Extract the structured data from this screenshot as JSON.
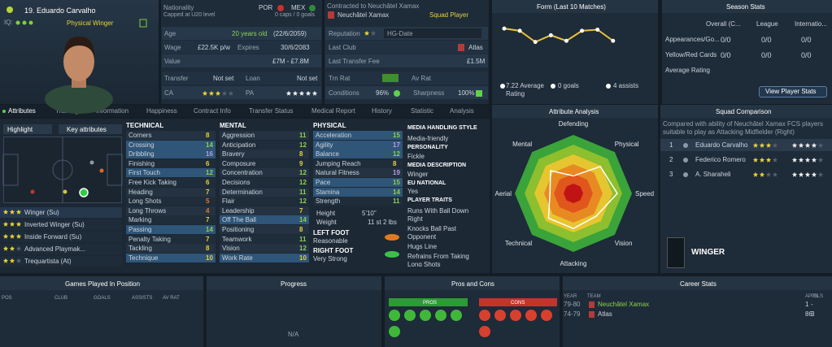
{
  "player": {
    "name": "19. Eduardo Carvalho",
    "iq_label": "IQ:",
    "role": "Physical Winger"
  },
  "info": {
    "nationality_label": "Nationality",
    "nations": [
      "POR",
      "MEX"
    ],
    "caps_note": "Capped at U20 level",
    "caps": "0 caps / 0 goals",
    "age_label": "Age",
    "age": "20 years old",
    "dob": "(22/6/2059)",
    "wage_label": "Wage",
    "wage": "£22.5K p/w",
    "expires_label": "Expires",
    "expires": "30/6/2083",
    "value_label": "Value",
    "value": "£7M - £7.8M",
    "transfer_label": "Transfer",
    "transfer": "Not set",
    "loan_label": "Loan",
    "loan": "Not set",
    "ca_label": "CA",
    "pa_label": "PA"
  },
  "contract": {
    "contracted": "Contracted to Neuchâtel Xamax",
    "club": "Neuchâtel Xamax",
    "status": "Squad Player",
    "reputation_label": "Reputation",
    "hg": "HG-Date",
    "last_club_label": "Last Club",
    "last_club": "Atlas",
    "fee_label": "Last Transfer Fee",
    "fee": "£1.5M",
    "trn_label": "Trn Rat",
    "av_label": "Av Rat",
    "conditions_label": "Conditions",
    "conditions": "96%",
    "sharpness_label": "Sharpness",
    "sharpness": "100%"
  },
  "form": {
    "title": "Form (Last 10 Matches)",
    "values": [
      7.9,
      7.7,
      6.7,
      7.3,
      6.8,
      7.7,
      7.8,
      6.8
    ],
    "ylim": [
      5,
      9
    ],
    "color": "#e8c33a",
    "average": "7.22 Average Rating",
    "goals": "0 goals",
    "assists": "4 assists"
  },
  "season": {
    "title": "Season Stats",
    "columns": [
      "Overall (C...",
      "League",
      "Internatio..."
    ],
    "rows": [
      [
        "Appearances/Go...",
        "0/0",
        "0/0",
        "0/0"
      ],
      [
        "Yellow/Red Cards",
        "0/0",
        "0/0",
        "0/0"
      ],
      [
        "Average Rating"
      ]
    ],
    "button": "View Player Stats"
  },
  "tabs": [
    "Attributes",
    "Training",
    "Information",
    "Happiness",
    "Contract Info",
    "Transfer Status",
    "Medical Report",
    "History",
    "Statistic",
    "Analysis"
  ],
  "attributes": {
    "highlight": "Highlight",
    "key": "Key attributes",
    "roles": [
      "Winger (Su)",
      "Inverted Winger (Su)",
      "Inside Forward (Su)",
      "Advanced Playmak...",
      "Trequartista (At)"
    ],
    "technical": {
      "title": "TECHNICAL",
      "items": [
        {
          "name": "Corners",
          "value": 8
        },
        {
          "name": "Crossing",
          "value": 14,
          "key": true
        },
        {
          "name": "Dribbling",
          "value": 16,
          "key": true
        },
        {
          "name": "Finishing",
          "value": 6
        },
        {
          "name": "First Touch",
          "value": 12,
          "key": true
        },
        {
          "name": "Free Kick Taking",
          "value": 6
        },
        {
          "name": "Heading",
          "value": 7
        },
        {
          "name": "Long Shots",
          "value": 5
        },
        {
          "name": "Long Throws",
          "value": 4
        },
        {
          "name": "Marking",
          "value": 7
        },
        {
          "name": "Passing",
          "value": 14,
          "key": true
        },
        {
          "name": "Penalty Taking",
          "value": 7
        },
        {
          "name": "Tackling",
          "value": 8
        },
        {
          "name": "Technique",
          "value": 10,
          "key": true
        }
      ]
    },
    "mental": {
      "title": "MENTAL",
      "items": [
        {
          "name": "Aggression",
          "value": 11
        },
        {
          "name": "Anticipation",
          "value": 12
        },
        {
          "name": "Bravery",
          "value": 8
        },
        {
          "name": "Composure",
          "value": 9
        },
        {
          "name": "Concentration",
          "value": 12
        },
        {
          "name": "Decisions",
          "value": 12
        },
        {
          "name": "Determination",
          "value": 11
        },
        {
          "name": "Flair",
          "value": 12
        },
        {
          "name": "Leadership",
          "value": 7
        },
        {
          "name": "Off The Ball",
          "value": 14,
          "key": true
        },
        {
          "name": "Positioning",
          "value": 8
        },
        {
          "name": "Teamwork",
          "value": 11
        },
        {
          "name": "Vision",
          "value": 12
        },
        {
          "name": "Work Rate",
          "value": 10,
          "key": true
        }
      ]
    },
    "physical": {
      "title": "PHYSICAL",
      "items": [
        {
          "name": "Acceleration",
          "value": 15,
          "key": true
        },
        {
          "name": "Agility",
          "value": 17,
          "key": true
        },
        {
          "name": "Balance",
          "value": 12,
          "key": true
        },
        {
          "name": "Jumping Reach",
          "value": 8
        },
        {
          "name": "Natural Fitness",
          "value": 19
        },
        {
          "name": "Pace",
          "value": 15,
          "key": true
        },
        {
          "name": "Stamina",
          "value": 14,
          "key": true
        },
        {
          "name": "Strength",
          "value": 11
        }
      ],
      "height_label": "Height",
      "height": "5'10\"",
      "weight_label": "Weight",
      "weight": "11 st 2 lbs",
      "left_foot_label": "LEFT FOOT",
      "left_foot": "Reasonable",
      "right_foot_label": "RIGHT FOOT",
      "right_foot": "Very Strong"
    }
  },
  "media": {
    "title": "MEDIA HANDLING STYLE",
    "style": "Media-friendly",
    "personality_label": "PERSONALITY",
    "personality": "Fickle",
    "description_label": "MEDIA DESCRIPTION",
    "description": "Winger",
    "eu_label": "EU NATIONAL",
    "eu": "Yes",
    "traits_label": "PLAYER TRAITS",
    "traits": [
      "Runs With Ball Down Right",
      "Knocks Ball Past Opponent",
      "Hugs Line",
      "Refrains From Taking Long Shots"
    ]
  },
  "analysis": {
    "title": "Attribute Analysis",
    "axes": [
      "Defending",
      "Physical",
      "Speed",
      "Vision",
      "Attacking",
      "Technical",
      "Aerial",
      "Mental"
    ],
    "values": [
      6,
      13,
      15,
      11,
      12,
      12,
      8,
      11
    ],
    "rlim": [
      0,
      20
    ]
  },
  "squad": {
    "title": "Squad Comparison",
    "note": "Compared with ability of Neuchâtel Xamax FCS players suitable to play as Attacking Midfielder (Right)",
    "players": [
      [
        "1",
        "Eduardo Carvalho"
      ],
      [
        "2",
        "Federico Romero"
      ],
      [
        "3",
        "A. Sharaheli"
      ]
    ],
    "position": "WINGER"
  },
  "bottom": {
    "games_title": "Games Played In Position",
    "games_cols": [
      "POS",
      "CLUB",
      "GOALS",
      "ASSISTS",
      "AV RAT"
    ],
    "progress_title": "Progress",
    "progress": "N/A",
    "pc_title": "Pros and Cons",
    "pros": "PROS",
    "cons": "CONS",
    "career_title": "Career Stats",
    "career_cols": [
      "YEAR",
      "TEAM",
      "APPS",
      "GLS"
    ],
    "career_rows": [
      [
        "79-80",
        "Neuchâtel Xamax",
        "1",
        "-"
      ],
      [
        "74-79",
        "Atlas",
        "86",
        "3"
      ]
    ]
  }
}
